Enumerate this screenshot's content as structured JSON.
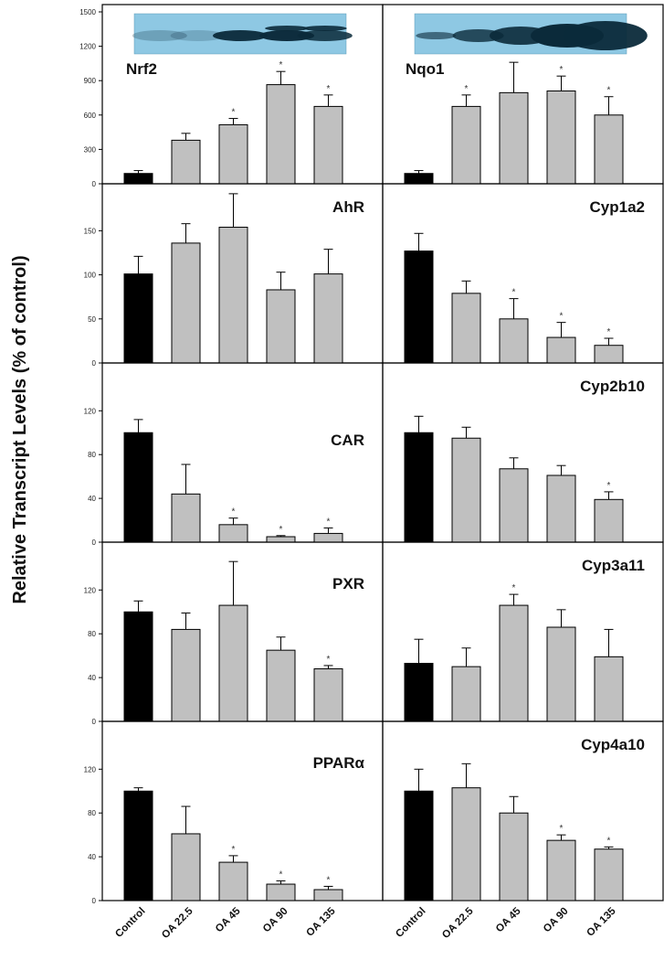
{
  "ylabel": "Relative Transcript Levels (% of control)",
  "categories": [
    "Control",
    "OA 22.5",
    "OA 45",
    "OA 90",
    "OA 135"
  ],
  "colors": {
    "control": "#000000",
    "treated": "#c0c0c0",
    "frame": "#000000"
  },
  "chart_data": [
    {
      "type": "bar",
      "title": "Nrf2",
      "ylim": [
        0,
        1500
      ],
      "yticks": [
        0,
        300,
        600,
        900,
        1200,
        1500
      ],
      "values": [
        90,
        380,
        515,
        865,
        675
      ],
      "errors": [
        25,
        60,
        55,
        115,
        100
      ],
      "significant": [
        false,
        false,
        true,
        true,
        true
      ],
      "blot": true
    },
    {
      "type": "bar",
      "title": "Nqo1",
      "ylim": [
        0,
        1500
      ],
      "yticks": [
        0,
        300,
        600,
        900,
        1200,
        1500
      ],
      "values": [
        90,
        675,
        795,
        810,
        600
      ],
      "errors": [
        25,
        100,
        265,
        130,
        160
      ],
      "significant": [
        false,
        true,
        false,
        true,
        true
      ],
      "blot": true
    },
    {
      "type": "bar",
      "title": "AhR",
      "ylim": [
        0,
        195
      ],
      "yticks": [
        0,
        50,
        100,
        150
      ],
      "values": [
        101,
        136,
        154,
        83,
        101
      ],
      "errors": [
        20,
        22,
        38,
        20,
        28
      ],
      "significant": [
        false,
        false,
        false,
        false,
        false
      ]
    },
    {
      "type": "bar",
      "title": "Cyp1a2",
      "ylim": [
        0,
        195
      ],
      "yticks": [
        0,
        50,
        100,
        150
      ],
      "values": [
        127,
        79,
        50,
        29,
        20
      ],
      "errors": [
        20,
        14,
        23,
        17,
        8
      ],
      "significant": [
        false,
        false,
        true,
        true,
        true
      ]
    },
    {
      "type": "bar",
      "title": "CAR",
      "ylim": [
        0,
        157
      ],
      "yticks": [
        0,
        40,
        80,
        120
      ],
      "values": [
        100,
        44,
        16,
        5,
        8
      ],
      "errors": [
        12,
        27,
        6,
        1,
        5
      ],
      "significant": [
        false,
        false,
        true,
        true,
        true
      ]
    },
    {
      "type": "bar",
      "title": "Cyp2b10",
      "ylim": [
        0,
        157
      ],
      "yticks": [
        0,
        40,
        80,
        120
      ],
      "values": [
        100,
        95,
        67,
        61,
        39
      ],
      "errors": [
        15,
        10,
        10,
        9,
        7
      ],
      "significant": [
        false,
        false,
        false,
        false,
        true
      ]
    },
    {
      "type": "bar",
      "title": "PXR",
      "ylim": [
        0,
        157
      ],
      "yticks": [
        0,
        40,
        80,
        120
      ],
      "values": [
        100,
        84,
        106,
        65,
        48
      ],
      "errors": [
        10,
        15,
        40,
        12,
        3
      ],
      "significant": [
        false,
        false,
        false,
        false,
        true
      ]
    },
    {
      "type": "bar",
      "title": "Cyp3a11",
      "ylim": [
        0,
        157
      ],
      "yticks": [
        0,
        40,
        80,
        120
      ],
      "values": [
        53,
        50,
        106,
        86,
        59
      ],
      "errors": [
        22,
        17,
        10,
        16,
        25
      ],
      "significant": [
        false,
        false,
        true,
        false,
        false
      ]
    },
    {
      "type": "bar",
      "title": "PPARα",
      "ylim": [
        0,
        157
      ],
      "yticks": [
        0,
        40,
        80,
        120
      ],
      "values": [
        100,
        61,
        35,
        15,
        10
      ],
      "errors": [
        3,
        25,
        6,
        3,
        3
      ],
      "significant": [
        false,
        false,
        true,
        true,
        true
      ]
    },
    {
      "type": "bar",
      "title": "Cyp4a10",
      "ylim": [
        0,
        157
      ],
      "yticks": [
        0,
        40,
        80,
        120
      ],
      "values": [
        100,
        103,
        80,
        55,
        47
      ],
      "errors": [
        20,
        22,
        15,
        5,
        2
      ],
      "significant": [
        false,
        false,
        false,
        true,
        true
      ]
    }
  ]
}
